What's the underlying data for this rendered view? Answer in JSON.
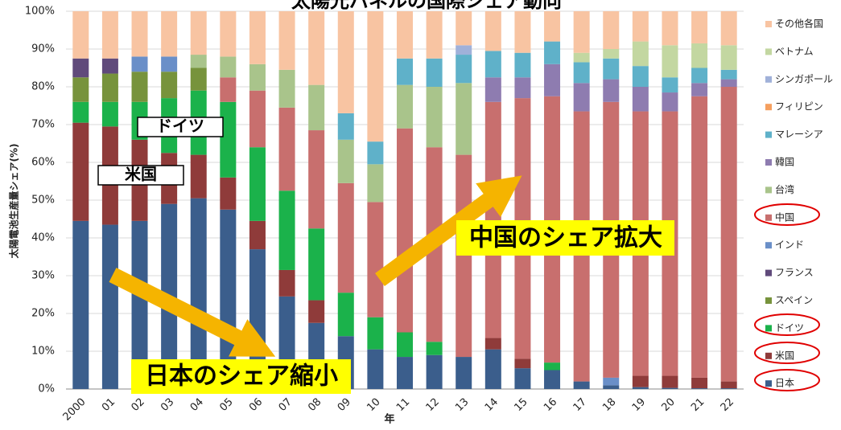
{
  "chart_data": {
    "type": "stacked_bar",
    "title": "太陽光パネルの国際シェア動向",
    "y_label": "太陽電池生産量シェア(%)",
    "x_label": "年",
    "annotations": [
      "ドイツ",
      "米国",
      "日本のシェア縮小",
      "中国のシェア拡大"
    ],
    "categories": [
      "2000",
      "01",
      "02",
      "03",
      "04",
      "05",
      "06",
      "07",
      "08",
      "09",
      "10",
      "11",
      "12",
      "13",
      "14",
      "15",
      "16",
      "17",
      "18",
      "19",
      "20",
      "21",
      "22"
    ],
    "ylim": [
      0,
      100
    ],
    "yticks": [
      {
        "value": 0,
        "label": "0%"
      },
      {
        "value": 10,
        "label": "10%"
      },
      {
        "value": 20,
        "label": "20%"
      },
      {
        "value": 30,
        "label": "30%"
      },
      {
        "value": 40,
        "label": "40%"
      },
      {
        "value": 50,
        "label": "50%"
      },
      {
        "value": 60,
        "label": "60%"
      },
      {
        "value": 70,
        "label": "70%"
      },
      {
        "value": 80,
        "label": "80%"
      },
      {
        "value": 90,
        "label": "90%"
      },
      {
        "value": 100,
        "label": "100%"
      }
    ],
    "series": [
      {
        "name": "日本",
        "color": "#3b5e8c",
        "values": [
          44.5,
          43.5,
          44.5,
          49,
          50.5,
          47.5,
          37,
          24.5,
          17.5,
          14,
          10.5,
          8.5,
          9,
          8.5,
          10.5,
          5.5,
          5,
          2,
          1,
          0.5,
          0.3,
          0.2,
          0.2
        ]
      },
      {
        "name": "米国",
        "color": "#8f3b3a",
        "values": [
          26,
          26,
          21.5,
          13.5,
          11.5,
          8.5,
          7.5,
          7,
          6,
          0,
          0,
          0,
          0,
          0,
          3,
          2.5,
          0,
          0,
          0,
          3,
          3.2,
          2.8,
          1.8
        ]
      },
      {
        "name": "ドイツ",
        "color": "#1bb24b",
        "values": [
          5.5,
          6.5,
          10,
          14.5,
          17,
          20,
          19.5,
          21,
          19,
          11.5,
          8.5,
          6.5,
          3.5,
          0,
          0,
          0,
          2,
          0,
          0,
          0,
          0,
          0,
          0
        ]
      },
      {
        "name": "スペイン",
        "color": "#77933c",
        "values": [
          6.5,
          7.5,
          8,
          7,
          6,
          0,
          0,
          0,
          0,
          0,
          0,
          0,
          0,
          0,
          0,
          0,
          0,
          0,
          0,
          0,
          0,
          0,
          0
        ]
      },
      {
        "name": "フランス",
        "color": "#604a7b",
        "values": [
          5,
          4,
          0,
          0,
          0,
          0,
          0,
          0,
          0,
          0,
          0,
          0,
          0,
          0,
          0,
          0,
          0,
          0,
          0,
          0,
          0,
          0,
          0
        ]
      },
      {
        "name": "インド",
        "color": "#6a8fc8",
        "values": [
          0,
          0,
          4,
          4,
          0,
          0,
          0,
          0,
          0,
          0,
          0,
          0,
          0,
          0,
          0,
          0,
          0,
          0,
          2,
          0,
          0,
          0,
          0
        ]
      },
      {
        "name": "中国",
        "color": "#c86f6e",
        "values": [
          0,
          0,
          0,
          0,
          0,
          6.5,
          15,
          22,
          26,
          29,
          30.5,
          54,
          51.5,
          53.5,
          62.5,
          69,
          70.5,
          71.5,
          73,
          70,
          70,
          74.5,
          78
        ]
      },
      {
        "name": "台湾",
        "color": "#a9c48b",
        "values": [
          0,
          0,
          0,
          0,
          3.5,
          5.5,
          7,
          10,
          12,
          11.5,
          10,
          11.5,
          16,
          19,
          0,
          0,
          0,
          0,
          0,
          0,
          0,
          0,
          0
        ]
      },
      {
        "name": "韓国",
        "color": "#8e7cb0",
        "values": [
          0,
          0,
          0,
          0,
          0,
          0,
          0,
          0,
          0,
          0,
          0,
          0,
          0,
          0,
          6.5,
          5.5,
          8.5,
          7.5,
          6,
          6.5,
          5,
          3.5,
          2
        ]
      },
      {
        "name": "マレーシア",
        "color": "#5fb1c9",
        "values": [
          0,
          0,
          0,
          0,
          0,
          0,
          0,
          0,
          0,
          7,
          6,
          7,
          7.5,
          7.5,
          7,
          6.5,
          6,
          5.5,
          5.5,
          5.5,
          4,
          4,
          2.5
        ]
      },
      {
        "name": "フィリピン",
        "color": "#f59f5f",
        "values": [
          0,
          0,
          0,
          0,
          0,
          0,
          0,
          0,
          0,
          0,
          0,
          0,
          0,
          0,
          0,
          0,
          0,
          0,
          0,
          0,
          0,
          0,
          0
        ]
      },
      {
        "name": "シンガポール",
        "color": "#a0b1d9",
        "values": [
          0,
          0,
          0,
          0,
          0,
          0,
          0,
          0,
          0,
          0,
          0,
          0,
          0,
          2.5,
          0,
          0,
          0,
          0,
          0,
          0,
          0,
          0,
          0
        ]
      },
      {
        "name": "ベトナム",
        "color": "#c3d7a1",
        "values": [
          0,
          0,
          0,
          0,
          0,
          0,
          0,
          0,
          0,
          0,
          0,
          0,
          0,
          0,
          0,
          0,
          0,
          2.5,
          2.5,
          6.5,
          8.5,
          6.5,
          6.5
        ]
      },
      {
        "name": "その他各国",
        "color": "#f8c4a2",
        "values": [
          12.5,
          12.5,
          12,
          12,
          11.5,
          12,
          14,
          15.5,
          19.5,
          27,
          34.5,
          12.5,
          12.5,
          9,
          10.5,
          11,
          8,
          11,
          10,
          8,
          9,
          8.5,
          9
        ]
      }
    ]
  }
}
